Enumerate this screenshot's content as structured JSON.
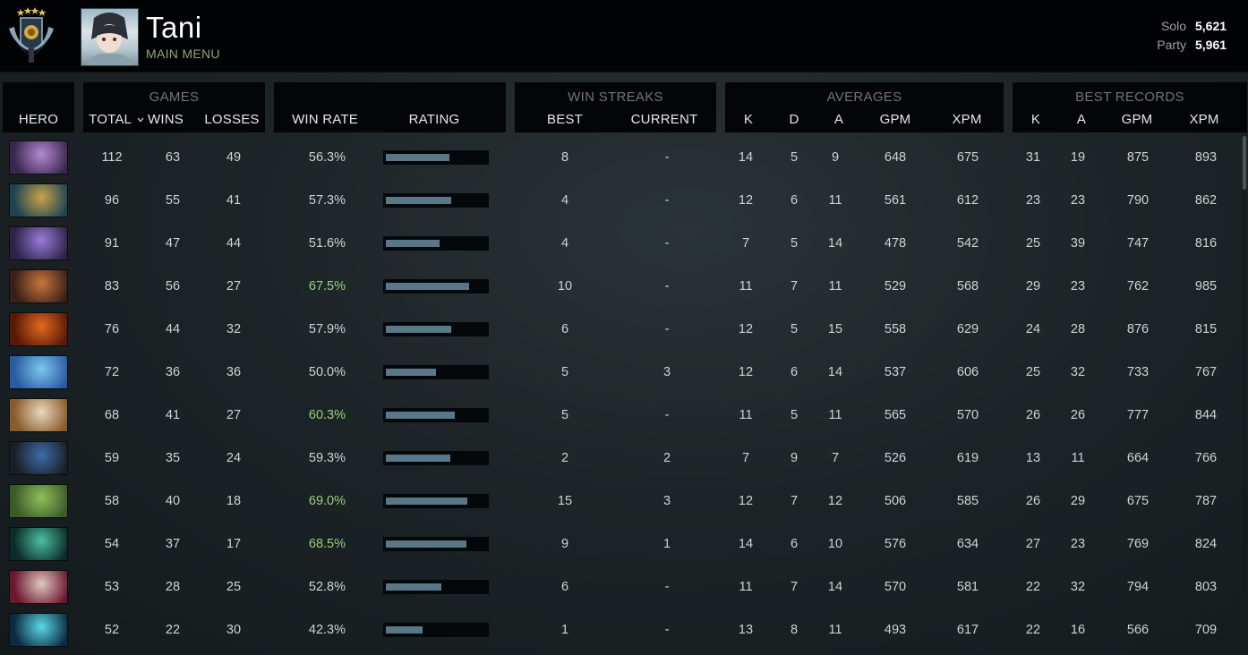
{
  "profile": {
    "name": "Tani",
    "main_menu": "MAIN MENU",
    "solo_label": "Solo",
    "solo_mmr": "5,621",
    "party_label": "Party",
    "party_mmr": "5,961",
    "rank_stars": 4
  },
  "headers": {
    "hero": "HERO",
    "games": "GAMES",
    "total": "TOTAL",
    "wins": "WINS",
    "losses": "LOSSES",
    "win_rate": "WIN RATE",
    "rating": "RATING",
    "win_streaks": "WIN STREAKS",
    "best": "BEST",
    "current": "CURRENT",
    "averages": "AVERAGES",
    "avg_k": "K",
    "avg_d": "D",
    "avg_a": "A",
    "avg_gpm": "GPM",
    "avg_xpm": "XPM",
    "best_records": "BEST RECORDS",
    "best_k": "K",
    "best_a": "A",
    "best_gpm": "GPM",
    "best_xpm": "XPM"
  },
  "colors": {
    "win_rate_high": "#9ccf7d",
    "rating_bar": "#5a7788",
    "link": "#8aab74"
  },
  "rows": [
    {
      "hero_icon": "hero-portrait-purple-masked",
      "total": "112",
      "wins": "63",
      "losses": "49",
      "win_rate": "56.3%",
      "high": false,
      "rating": 0.63,
      "best": "8",
      "current": "-",
      "k": "14",
      "d": "5",
      "a": "9",
      "gpm": "648",
      "xpm": "675",
      "bk": "31",
      "ba": "19",
      "bgpm": "875",
      "bxpm": "893",
      "c1": "#b58ad0",
      "c2": "#3a2750"
    },
    {
      "hero_icon": "hero-portrait-masked-gold",
      "total": "96",
      "wins": "55",
      "losses": "41",
      "win_rate": "57.3%",
      "high": false,
      "rating": 0.65,
      "best": "4",
      "current": "-",
      "k": "12",
      "d": "6",
      "a": "11",
      "gpm": "561",
      "xpm": "612",
      "bk": "23",
      "ba": "23",
      "bgpm": "790",
      "bxpm": "862",
      "c1": "#c9a24a",
      "c2": "#1e4454"
    },
    {
      "hero_icon": "hero-portrait-violet",
      "total": "91",
      "wins": "47",
      "losses": "44",
      "win_rate": "51.6%",
      "high": false,
      "rating": 0.54,
      "best": "4",
      "current": "-",
      "k": "7",
      "d": "5",
      "a": "14",
      "gpm": "478",
      "xpm": "542",
      "bk": "25",
      "ba": "39",
      "bgpm": "747",
      "bxpm": "816",
      "c1": "#9a7bd8",
      "c2": "#2c2448"
    },
    {
      "hero_icon": "hero-portrait-goggles",
      "total": "83",
      "wins": "56",
      "losses": "27",
      "win_rate": "67.5%",
      "high": true,
      "rating": 0.83,
      "best": "10",
      "current": "-",
      "k": "11",
      "d": "7",
      "a": "11",
      "gpm": "529",
      "xpm": "568",
      "bk": "29",
      "ba": "23",
      "bgpm": "762",
      "bxpm": "985",
      "c1": "#c8763c",
      "c2": "#3a1f18"
    },
    {
      "hero_icon": "hero-portrait-fire",
      "total": "76",
      "wins": "44",
      "losses": "32",
      "win_rate": "57.9%",
      "high": false,
      "rating": 0.65,
      "best": "6",
      "current": "-",
      "k": "12",
      "d": "5",
      "a": "15",
      "gpm": "558",
      "xpm": "629",
      "bk": "24",
      "ba": "28",
      "bgpm": "876",
      "bxpm": "815",
      "c1": "#e06a1e",
      "c2": "#5a1808"
    },
    {
      "hero_icon": "hero-portrait-blue-water",
      "total": "72",
      "wins": "36",
      "losses": "36",
      "win_rate": "50.0%",
      "high": false,
      "rating": 0.5,
      "best": "5",
      "current": "3",
      "k": "12",
      "d": "6",
      "a": "14",
      "gpm": "537",
      "xpm": "606",
      "bk": "25",
      "ba": "32",
      "bgpm": "733",
      "bxpm": "767",
      "c1": "#7ac8ee",
      "c2": "#2a5aa0"
    },
    {
      "hero_icon": "hero-portrait-elf",
      "total": "68",
      "wins": "41",
      "losses": "27",
      "win_rate": "60.3%",
      "high": true,
      "rating": 0.69,
      "best": "5",
      "current": "-",
      "k": "11",
      "d": "5",
      "a": "11",
      "gpm": "565",
      "xpm": "570",
      "bk": "26",
      "ba": "26",
      "bgpm": "777",
      "bxpm": "844",
      "c1": "#e8d8c0",
      "c2": "#8a5a2a"
    },
    {
      "hero_icon": "hero-portrait-hooded",
      "total": "59",
      "wins": "35",
      "losses": "24",
      "win_rate": "59.3%",
      "high": false,
      "rating": 0.64,
      "best": "2",
      "current": "2",
      "k": "7",
      "d": "9",
      "a": "7",
      "gpm": "526",
      "xpm": "619",
      "bk": "13",
      "ba": "11",
      "bgpm": "664",
      "bxpm": "766",
      "c1": "#3c6ea8",
      "c2": "#1a1e28"
    },
    {
      "hero_icon": "hero-portrait-green",
      "total": "58",
      "wins": "40",
      "losses": "18",
      "win_rate": "69.0%",
      "high": true,
      "rating": 0.81,
      "best": "15",
      "current": "3",
      "k": "12",
      "d": "7",
      "a": "12",
      "gpm": "506",
      "xpm": "585",
      "bk": "26",
      "ba": "29",
      "bgpm": "675",
      "bxpm": "787",
      "c1": "#8fc05a",
      "c2": "#3a5a28"
    },
    {
      "hero_icon": "hero-portrait-teal-spectre",
      "total": "54",
      "wins": "37",
      "losses": "17",
      "win_rate": "68.5%",
      "high": true,
      "rating": 0.8,
      "best": "9",
      "current": "1",
      "k": "14",
      "d": "6",
      "a": "10",
      "gpm": "576",
      "xpm": "634",
      "bk": "27",
      "ba": "23",
      "bgpm": "769",
      "bxpm": "824",
      "c1": "#4ac0a0",
      "c2": "#0c2a28"
    },
    {
      "hero_icon": "hero-portrait-invoker",
      "total": "53",
      "wins": "28",
      "losses": "25",
      "win_rate": "52.8%",
      "high": false,
      "rating": 0.55,
      "best": "6",
      "current": "-",
      "k": "11",
      "d": "7",
      "a": "14",
      "gpm": "570",
      "xpm": "581",
      "bk": "22",
      "ba": "32",
      "bgpm": "794",
      "bxpm": "803",
      "c1": "#e0c8c0",
      "c2": "#6a1830"
    },
    {
      "hero_icon": "hero-portrait-ice",
      "total": "52",
      "wins": "22",
      "losses": "30",
      "win_rate": "42.3%",
      "high": false,
      "rating": 0.37,
      "best": "1",
      "current": "-",
      "k": "13",
      "d": "8",
      "a": "11",
      "gpm": "493",
      "xpm": "617",
      "bk": "22",
      "ba": "16",
      "bgpm": "566",
      "bxpm": "709",
      "c1": "#5ad8e8",
      "c2": "#0c2a40"
    }
  ]
}
